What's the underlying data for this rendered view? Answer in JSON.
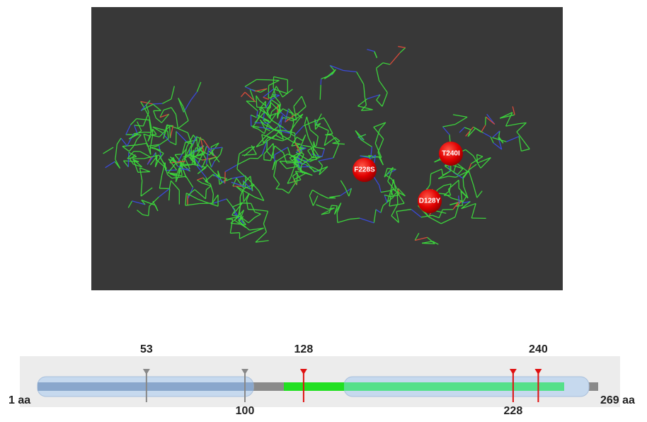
{
  "structure": {
    "mutations": [
      "F228S",
      "T240I",
      "D128Y"
    ]
  },
  "domain_map": {
    "start_label": "1 aa",
    "end_label": "269 aa",
    "markers": [
      {
        "position": 53,
        "kind": "grey"
      },
      {
        "position": 100,
        "kind": "grey"
      },
      {
        "position": 128,
        "kind": "red"
      },
      {
        "position": 228,
        "kind": "red"
      },
      {
        "position": 240,
        "kind": "red"
      }
    ]
  }
}
